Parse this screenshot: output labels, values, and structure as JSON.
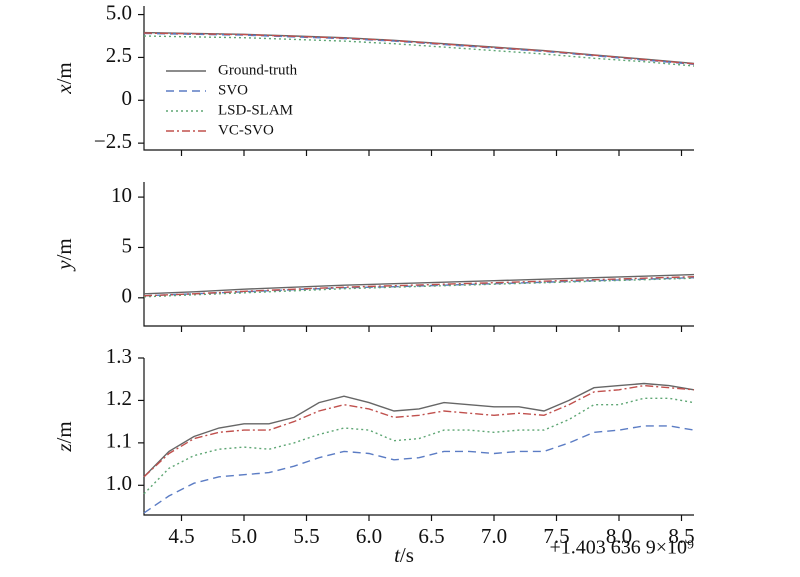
{
  "chart_data": {
    "type": "line",
    "shared_x": {
      "label_var": "t",
      "label_unit": "/s",
      "ticks": [
        "4.5",
        "5.0",
        "5.5",
        "6.0",
        "6.5",
        "7.0",
        "7.5",
        "8.0",
        "8.5"
      ],
      "tick_values": [
        4.5,
        5.0,
        5.5,
        6.0,
        6.5,
        7.0,
        7.5,
        8.0,
        8.5
      ],
      "xlim": [
        4.2,
        8.6
      ],
      "offset_text": "+1.403 636 9×10⁹"
    },
    "legend": {
      "placement": "left, upper panel",
      "entries": [
        {
          "name": "Ground-truth",
          "color": "#666666",
          "style": "solid"
        },
        {
          "name": "SVO",
          "color": "#5b7cc4",
          "style": "dashed"
        },
        {
          "name": "LSD-SLAM",
          "color": "#5ea674",
          "style": "dotted"
        },
        {
          "name": "VC-SVO",
          "color": "#c0504d",
          "style": "dashdot"
        }
      ]
    },
    "panels": [
      {
        "ylabel_var": "x",
        "ylabel_unit": "/m",
        "ylim": [
          -2.9,
          5.5
        ],
        "yticks": [
          "5.0",
          "2.5",
          "0",
          "−2.5"
        ],
        "ytick_values": [
          5.0,
          2.5,
          0,
          -2.5
        ],
        "x": [
          4.2,
          4.6,
          5.0,
          5.4,
          5.8,
          6.2,
          6.6,
          7.0,
          7.4,
          7.8,
          8.2,
          8.6
        ],
        "series": [
          {
            "name": "Ground-truth",
            "values": [
              3.95,
              3.9,
              3.85,
              3.75,
              3.65,
              3.5,
              3.3,
              3.1,
              2.9,
              2.65,
              2.4,
              2.15
            ]
          },
          {
            "name": "SVO",
            "values": [
              3.9,
              3.85,
              3.8,
              3.7,
              3.6,
              3.45,
              3.25,
              3.05,
              2.85,
              2.6,
              2.35,
              2.1
            ]
          },
          {
            "name": "LSD-SLAM",
            "values": [
              3.75,
              3.7,
              3.65,
              3.55,
              3.45,
              3.3,
              3.1,
              2.9,
              2.7,
              2.45,
              2.25,
              2.0
            ]
          },
          {
            "name": "VC-SVO",
            "values": [
              3.92,
              3.88,
              3.83,
              3.73,
              3.63,
              3.48,
              3.28,
              3.08,
              2.88,
              2.63,
              2.38,
              2.13
            ]
          }
        ]
      },
      {
        "ylabel_var": "y",
        "ylabel_unit": "/m",
        "ylim": [
          -2.8,
          11.5
        ],
        "yticks": [
          "10",
          "5",
          "0"
        ],
        "ytick_values": [
          10,
          5,
          0
        ],
        "x": [
          4.2,
          4.6,
          5.0,
          5.4,
          5.8,
          6.2,
          6.6,
          7.0,
          7.4,
          7.8,
          8.2,
          8.6
        ],
        "series": [
          {
            "name": "Ground-truth",
            "values": [
              0.4,
              0.6,
              0.85,
              1.05,
              1.25,
              1.4,
              1.55,
              1.7,
              1.85,
              2.0,
              2.15,
              2.3
            ]
          },
          {
            "name": "SVO",
            "values": [
              0.2,
              0.4,
              0.6,
              0.8,
              1.0,
              1.1,
              1.25,
              1.4,
              1.55,
              1.7,
              1.85,
              2.0
            ]
          },
          {
            "name": "LSD-SLAM",
            "values": [
              0.1,
              0.3,
              0.5,
              0.7,
              0.9,
              1.05,
              1.2,
              1.35,
              1.5,
              1.65,
              1.8,
              1.95
            ]
          },
          {
            "name": "VC-SVO",
            "values": [
              0.2,
              0.4,
              0.65,
              0.85,
              1.05,
              1.2,
              1.35,
              1.5,
              1.65,
              1.8,
              1.95,
              2.1
            ]
          }
        ]
      },
      {
        "ylabel_var": "z",
        "ylabel_unit": "/m",
        "ylim": [
          0.93,
          1.3
        ],
        "yticks": [
          "1.3",
          "1.2",
          "1.1",
          "1.0"
        ],
        "ytick_values": [
          1.3,
          1.2,
          1.1,
          1.0
        ],
        "x": [
          4.2,
          4.4,
          4.6,
          4.8,
          5.0,
          5.2,
          5.4,
          5.6,
          5.8,
          6.0,
          6.2,
          6.4,
          6.6,
          6.8,
          7.0,
          7.2,
          7.4,
          7.6,
          7.8,
          8.0,
          8.2,
          8.4,
          8.6
        ],
        "series": [
          {
            "name": "Ground-truth",
            "values": [
              1.02,
              1.08,
              1.115,
              1.135,
              1.145,
              1.145,
              1.16,
              1.195,
              1.21,
              1.195,
              1.175,
              1.18,
              1.195,
              1.19,
              1.185,
              1.185,
              1.175,
              1.2,
              1.23,
              1.235,
              1.24,
              1.235,
              1.225
            ]
          },
          {
            "name": "SVO",
            "values": [
              0.935,
              0.975,
              1.005,
              1.02,
              1.025,
              1.03,
              1.045,
              1.065,
              1.08,
              1.075,
              1.06,
              1.065,
              1.08,
              1.08,
              1.075,
              1.08,
              1.08,
              1.1,
              1.125,
              1.13,
              1.14,
              1.14,
              1.13
            ]
          },
          {
            "name": "LSD-SLAM",
            "values": [
              0.98,
              1.04,
              1.07,
              1.085,
              1.09,
              1.085,
              1.1,
              1.12,
              1.135,
              1.13,
              1.105,
              1.11,
              1.13,
              1.13,
              1.125,
              1.13,
              1.13,
              1.155,
              1.19,
              1.19,
              1.205,
              1.205,
              1.195
            ]
          },
          {
            "name": "VC-SVO",
            "values": [
              1.02,
              1.075,
              1.11,
              1.125,
              1.13,
              1.13,
              1.15,
              1.175,
              1.19,
              1.18,
              1.16,
              1.165,
              1.175,
              1.17,
              1.165,
              1.17,
              1.165,
              1.19,
              1.22,
              1.225,
              1.235,
              1.23,
              1.225
            ]
          }
        ]
      }
    ]
  }
}
